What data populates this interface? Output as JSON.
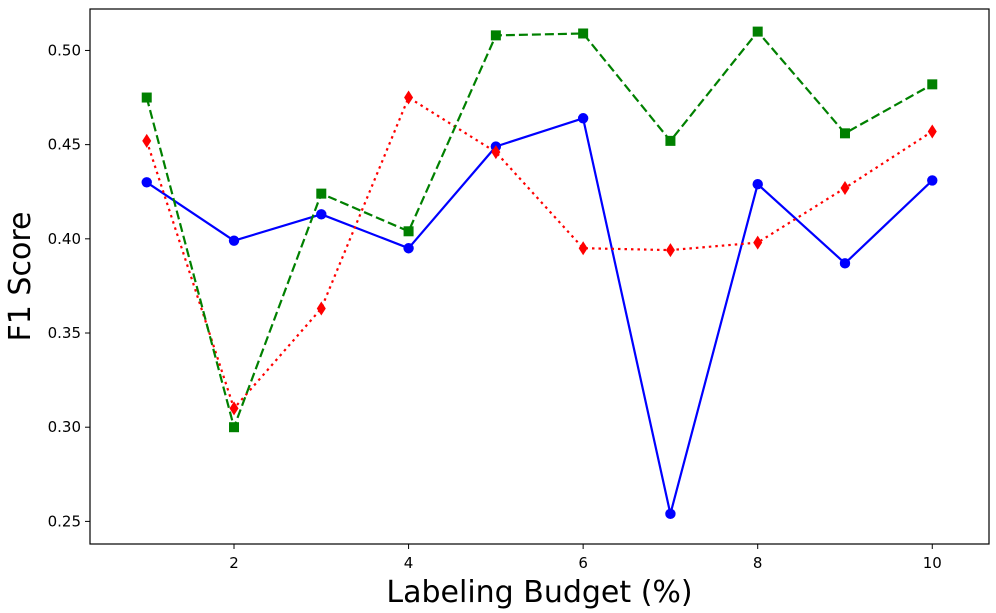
{
  "chart_data": {
    "type": "line",
    "title": "",
    "xlabel": "Labeling Budget (%)",
    "ylabel": "F1 Score",
    "xlim": [
      0.35,
      10.65
    ],
    "ylim": [
      0.238,
      0.522
    ],
    "x": [
      1,
      2,
      3,
      4,
      5,
      6,
      7,
      8,
      9,
      10
    ],
    "xticks": [
      2,
      4,
      6,
      8,
      10
    ],
    "xtick_labels": [
      "2",
      "4",
      "6",
      "8",
      "10"
    ],
    "yticks": [
      0.25,
      0.3,
      0.35,
      0.4,
      0.45,
      0.5
    ],
    "ytick_labels": [
      "0.25",
      "0.30",
      "0.35",
      "0.40",
      "0.45",
      "0.50"
    ],
    "grid": false,
    "legend": "none",
    "series": [
      {
        "color": "#0000ff",
        "line_style": "solid",
        "marker": "circle",
        "values": [
          0.43,
          0.399,
          0.413,
          0.395,
          0.449,
          0.464,
          0.254,
          0.429,
          0.387,
          0.431
        ]
      },
      {
        "color": "#ff0000",
        "line_style": "dotted",
        "marker": "diamond",
        "values": [
          0.452,
          0.31,
          0.363,
          0.475,
          0.446,
          0.395,
          0.394,
          0.398,
          0.427,
          0.457
        ]
      },
      {
        "color": "#008000",
        "line_style": "dashed",
        "marker": "square",
        "values": [
          0.475,
          0.3,
          0.424,
          0.404,
          0.508,
          0.509,
          0.452,
          0.51,
          0.456,
          0.482
        ]
      }
    ]
  }
}
